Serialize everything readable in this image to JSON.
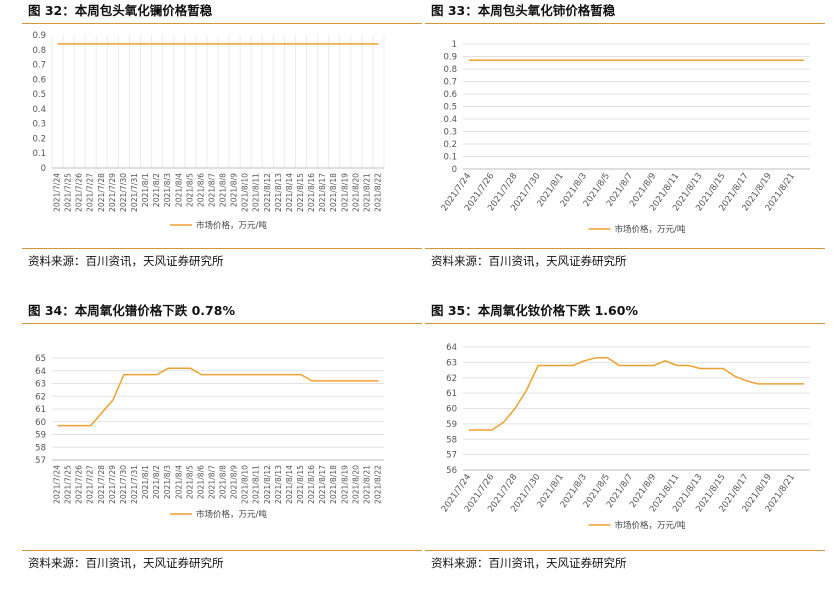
{
  "source_text": "资料来源：百川资讯，天风证券研究所",
  "chart_data": [
    {
      "id": "c32",
      "type": "line",
      "figure_title": "图 32：本周包头氧化镧价格暂稳",
      "legend": "市场价格，万元/吨",
      "ylim": [
        0,
        0.9
      ],
      "yticks": [
        "0",
        "0.1",
        "0.2",
        "0.3",
        "0.4",
        "0.5",
        "0.6",
        "0.7",
        "0.8",
        "0.9"
      ],
      "categories": [
        "2021/7/24",
        "2021/7/25",
        "2021/7/26",
        "2021/7/27",
        "2021/7/28",
        "2021/7/29",
        "2021/7/30",
        "2021/7/31",
        "2021/8/1",
        "2021/8/2",
        "2021/8/3",
        "2021/8/4",
        "2021/8/5",
        "2021/8/6",
        "2021/8/7",
        "2021/8/8",
        "2021/8/9",
        "2021/8/10",
        "2021/8/11",
        "2021/8/12",
        "2021/8/13",
        "2021/8/14",
        "2021/8/15",
        "2021/8/16",
        "2021/8/17",
        "2021/8/18",
        "2021/8/19",
        "2021/8/20",
        "2021/8/21",
        "2021/8/22"
      ],
      "xtick_labels": [
        "2021/7/24",
        "2021/7/25",
        "2021/7/26",
        "2021/7/27",
        "2021/7/28",
        "2021/7/29",
        "2021/7/30",
        "2021/7/31",
        "2021/8/1",
        "2021/8/2",
        "2021/8/3",
        "2021/8/4",
        "2021/8/5",
        "2021/8/6",
        "2021/8/7",
        "2021/8/8",
        "2021/8/9",
        "2021/8/10",
        "2021/8/11",
        "2021/8/12",
        "2021/8/13",
        "2021/8/14",
        "2021/8/15",
        "2021/8/16",
        "2021/8/17",
        "2021/8/18",
        "2021/8/19",
        "2021/8/20",
        "2021/8/21",
        "2021/8/22"
      ],
      "values": [
        0.84,
        0.84,
        0.84,
        0.84,
        0.84,
        0.84,
        0.84,
        0.84,
        0.84,
        0.84,
        0.84,
        0.84,
        0.84,
        0.84,
        0.84,
        0.84,
        0.84,
        0.84,
        0.84,
        0.84,
        0.84,
        0.84,
        0.84,
        0.84,
        0.84,
        0.84,
        0.84,
        0.84,
        0.84,
        0.84
      ],
      "color": "#f0a030",
      "grid": "vertical"
    },
    {
      "id": "c33",
      "type": "line",
      "figure_title": "图 33：本周包头氧化铈价格暂稳",
      "legend": "市场价格，万元/吨",
      "ylim": [
        0,
        1
      ],
      "yticks": [
        "0",
        "0.1",
        "0.2",
        "0.3",
        "0.4",
        "0.5",
        "0.6",
        "0.7",
        "0.8",
        "0.9",
        "1"
      ],
      "categories": [
        "2021/7/24",
        "2021/7/25",
        "2021/7/26",
        "2021/7/27",
        "2021/7/28",
        "2021/7/29",
        "2021/7/30",
        "2021/7/31",
        "2021/8/1",
        "2021/8/2",
        "2021/8/3",
        "2021/8/4",
        "2021/8/5",
        "2021/8/6",
        "2021/8/7",
        "2021/8/8",
        "2021/8/9",
        "2021/8/10",
        "2021/8/11",
        "2021/8/12",
        "2021/8/13",
        "2021/8/14",
        "2021/8/15",
        "2021/8/16",
        "2021/8/17",
        "2021/8/18",
        "2021/8/19",
        "2021/8/20",
        "2021/8/21",
        "2021/8/22"
      ],
      "xtick_labels": [
        "2021/7/24",
        "2021/7/26",
        "2021/7/28",
        "2021/7/30",
        "2021/8/1",
        "2021/8/3",
        "2021/8/5",
        "2021/8/7",
        "2021/8/9",
        "2021/8/11",
        "2021/8/13",
        "2021/8/15",
        "2021/8/17",
        "2021/8/19",
        "2021/8/21"
      ],
      "values": [
        0.87,
        0.87,
        0.87,
        0.87,
        0.87,
        0.87,
        0.87,
        0.87,
        0.87,
        0.87,
        0.87,
        0.87,
        0.87,
        0.87,
        0.87,
        0.87,
        0.87,
        0.87,
        0.87,
        0.87,
        0.87,
        0.87,
        0.87,
        0.87,
        0.87,
        0.87,
        0.87,
        0.87,
        0.87,
        0.87
      ],
      "color": "#f0a030",
      "grid": "horizontal"
    },
    {
      "id": "c34",
      "type": "line",
      "figure_title": "图 34：本周氧化镨价格下跌 0.78%",
      "legend": "市场价格，万元/吨",
      "ylim": [
        57,
        65
      ],
      "yticks": [
        "57",
        "58",
        "59",
        "60",
        "61",
        "62",
        "63",
        "64",
        "65"
      ],
      "categories": [
        "2021/7/24",
        "2021/7/25",
        "2021/7/26",
        "2021/7/27",
        "2021/7/28",
        "2021/7/29",
        "2021/7/30",
        "2021/7/31",
        "2021/8/1",
        "2021/8/2",
        "2021/8/3",
        "2021/8/4",
        "2021/8/5",
        "2021/8/6",
        "2021/8/7",
        "2021/8/8",
        "2021/8/9",
        "2021/8/10",
        "2021/8/11",
        "2021/8/12",
        "2021/8/13",
        "2021/8/14",
        "2021/8/15",
        "2021/8/16",
        "2021/8/17",
        "2021/8/18",
        "2021/8/19",
        "2021/8/20",
        "2021/8/21",
        "2021/8/22"
      ],
      "xtick_labels": [
        "2021/7/24",
        "2021/7/25",
        "2021/7/26",
        "2021/7/27",
        "2021/7/28",
        "2021/7/29",
        "2021/7/30",
        "2021/7/31",
        "2021/8/1",
        "2021/8/2",
        "2021/8/3",
        "2021/8/4",
        "2021/8/5",
        "2021/8/6",
        "2021/8/7",
        "2021/8/8",
        "2021/8/9",
        "2021/8/10",
        "2021/8/11",
        "2021/8/12",
        "2021/8/13",
        "2021/8/14",
        "2021/8/15",
        "2021/8/16",
        "2021/8/17",
        "2021/8/18",
        "2021/8/19",
        "2021/8/20",
        "2021/8/21",
        "2021/8/22"
      ],
      "values": [
        59.7,
        59.7,
        59.7,
        59.7,
        60.7,
        61.7,
        63.7,
        63.7,
        63.7,
        63.7,
        64.2,
        64.2,
        64.2,
        63.7,
        63.7,
        63.7,
        63.7,
        63.7,
        63.7,
        63.7,
        63.7,
        63.7,
        63.7,
        63.2,
        63.2,
        63.2,
        63.2,
        63.2,
        63.2,
        63.2
      ],
      "color": "#f0a030",
      "grid": "horizontal"
    },
    {
      "id": "c35",
      "type": "line",
      "figure_title": "图 35：本周氧化钕价格下跌 1.60%",
      "legend": "市场价格，万元/吨",
      "ylim": [
        56,
        64
      ],
      "yticks": [
        "56",
        "57",
        "58",
        "59",
        "60",
        "61",
        "62",
        "63",
        "64"
      ],
      "categories": [
        "2021/7/24",
        "2021/7/25",
        "2021/7/26",
        "2021/7/27",
        "2021/7/28",
        "2021/7/29",
        "2021/7/30",
        "2021/7/31",
        "2021/8/1",
        "2021/8/2",
        "2021/8/3",
        "2021/8/4",
        "2021/8/5",
        "2021/8/6",
        "2021/8/7",
        "2021/8/8",
        "2021/8/9",
        "2021/8/10",
        "2021/8/11",
        "2021/8/12",
        "2021/8/13",
        "2021/8/14",
        "2021/8/15",
        "2021/8/16",
        "2021/8/17",
        "2021/8/18",
        "2021/8/19",
        "2021/8/20",
        "2021/8/21",
        "2021/8/22"
      ],
      "xtick_labels": [
        "2021/7/24",
        "2021/7/26",
        "2021/7/28",
        "2021/7/30",
        "2021/8/1",
        "2021/8/3",
        "2021/8/5",
        "2021/8/7",
        "2021/8/9",
        "2021/8/11",
        "2021/8/13",
        "2021/8/15",
        "2021/8/17",
        "2021/8/19",
        "2021/8/21"
      ],
      "values": [
        58.6,
        58.6,
        58.6,
        59.1,
        60.0,
        61.2,
        62.8,
        62.8,
        62.8,
        62.8,
        63.1,
        63.3,
        63.3,
        62.8,
        62.8,
        62.8,
        62.8,
        63.1,
        62.8,
        62.8,
        62.6,
        62.6,
        62.6,
        62.1,
        61.8,
        61.6,
        61.6,
        61.6,
        61.6,
        61.6
      ],
      "color": "#f0a030",
      "grid": "horizontal"
    }
  ]
}
